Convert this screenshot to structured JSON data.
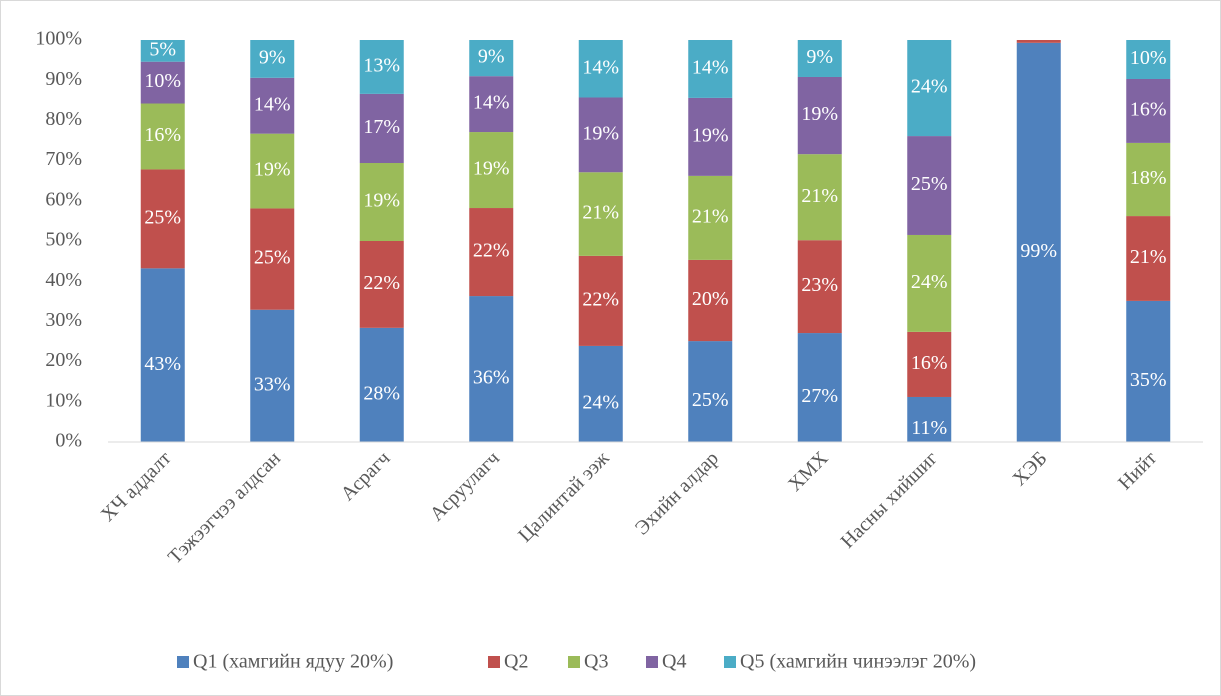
{
  "chart_data": {
    "type": "stacked_bar",
    "categories": [
      "ХЧ аддалт",
      "Тэжээгчээ алдсан",
      "Асрагч",
      "Асруулагч",
      "Цалинтай ээж",
      "Эхийн алдар",
      "ХМХ",
      "Насны хийшиг",
      "ХЭБ",
      "Нийт"
    ],
    "series": [
      {
        "name": "Q1 (хамгийн ядуу 20%)",
        "color": "#4f81bd",
        "values": [
          43.2,
          32.9,
          28.4,
          36.3,
          23.9,
          25.1,
          27.1,
          11.2,
          99.3,
          35.1
        ],
        "value_labels": [
          "43%",
          "33%",
          "28%",
          "36%",
          "24%",
          "25%",
          "27%",
          "11%",
          "99%",
          "35%"
        ]
      },
      {
        "name": "Q2",
        "color": "#c0504d",
        "values": [
          24.6,
          25.2,
          21.6,
          21.9,
          22.4,
          20.2,
          23.1,
          16.2,
          0.7,
          21.1
        ],
        "value_labels": [
          "25%",
          "25%",
          "22%",
          "22%",
          "22%",
          "20%",
          "23%",
          "16%",
          null,
          "21%"
        ]
      },
      {
        "name": "Q3",
        "color": "#9bbb59",
        "values": [
          16.4,
          18.6,
          19.4,
          18.9,
          20.8,
          20.9,
          21.4,
          24.1,
          0,
          18.2
        ],
        "value_labels": [
          "16%",
          "19%",
          "19%",
          "19%",
          "21%",
          "21%",
          "21%",
          "24%",
          null,
          "18%"
        ]
      },
      {
        "name": "Q4",
        "color": "#8064a2",
        "values": [
          10.4,
          13.9,
          17.2,
          13.9,
          18.6,
          19.4,
          19.2,
          24.6,
          0,
          15.9
        ],
        "value_labels": [
          "10%",
          "14%",
          "17%",
          "14%",
          "19%",
          "19%",
          "19%",
          "25%",
          null,
          "16%"
        ]
      },
      {
        "name": "Q5 (хамгийн чинээлэг 20%)",
        "color": "#4bacc6",
        "values": [
          5.4,
          9.4,
          13.4,
          9.0,
          14.3,
          14.4,
          9.2,
          23.9,
          0,
          9.7
        ],
        "value_labels": [
          "5%",
          "9%",
          "13%",
          "9%",
          "14%",
          "14%",
          "9%",
          "24%",
          null,
          "10%"
        ]
      }
    ],
    "ylim": [
      0,
      100
    ],
    "yticks": [
      {
        "value": 0,
        "label": "0%"
      },
      {
        "value": 10,
        "label": "10%"
      },
      {
        "value": 20,
        "label": "20%"
      },
      {
        "value": 30,
        "label": "30%"
      },
      {
        "value": 40,
        "label": "40%"
      },
      {
        "value": 50,
        "label": "50%"
      },
      {
        "value": 60,
        "label": "60%"
      },
      {
        "value": 70,
        "label": "70%"
      },
      {
        "value": 80,
        "label": "80%"
      },
      {
        "value": 90,
        "label": "90%"
      },
      {
        "value": 100,
        "label": "100%"
      }
    ],
    "grid": false,
    "legend": "bottom"
  }
}
